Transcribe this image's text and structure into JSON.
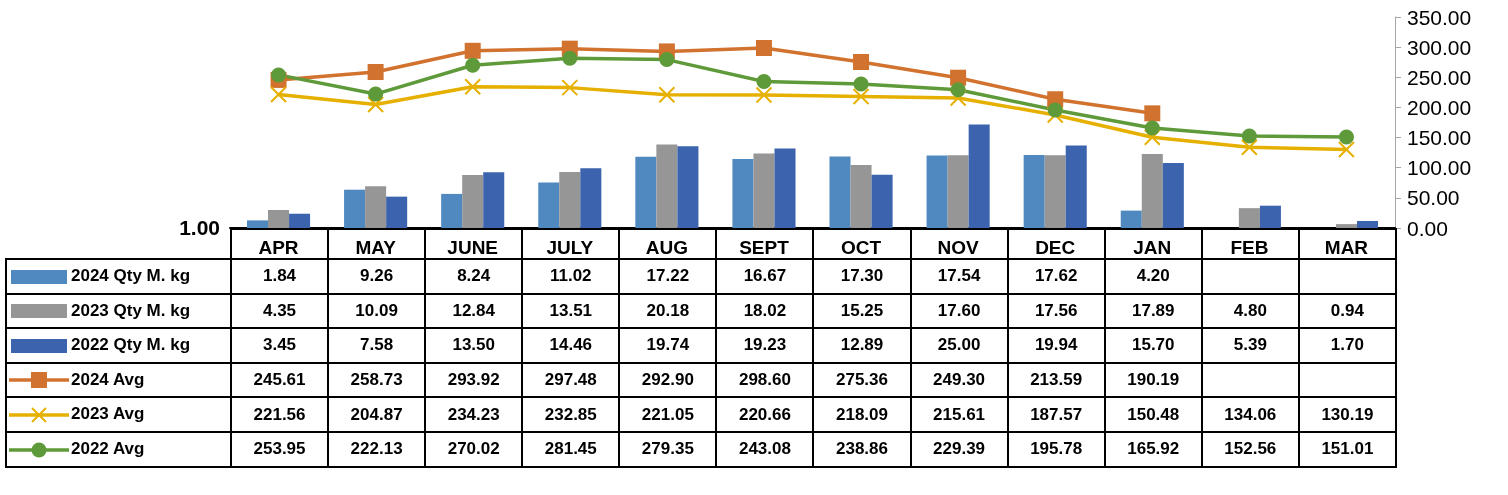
{
  "chart_data": {
    "type": "bar",
    "categories": [
      "APR",
      "MAY",
      "JUNE",
      "JULY",
      "AUG",
      "SEPT",
      "OCT",
      "NOV",
      "DEC",
      "JAN",
      "FEB",
      "MAR"
    ],
    "ylim": [
      0,
      51
    ],
    "annotations": [
      "1.00"
    ],
    "y2lim": [
      0,
      350
    ],
    "y2ticks": [
      {
        "value": 0,
        "label": "0.00"
      },
      {
        "value": 50,
        "label": "50.00"
      },
      {
        "value": 100,
        "label": "100.00"
      },
      {
        "value": 150,
        "label": "150.00"
      },
      {
        "value": 200,
        "label": "200.00"
      },
      {
        "value": 250,
        "label": "250.00"
      },
      {
        "value": 300,
        "label": "300.00"
      },
      {
        "value": 350,
        "label": "350.00"
      }
    ],
    "grid": false,
    "legend": "bottom left",
    "series": [
      {
        "name": "2024 Qty M. kg",
        "color": "#4f89c0",
        "values": [
          1.84,
          9.26,
          8.24,
          11.02,
          17.22,
          16.67,
          17.3,
          17.54,
          17.62,
          4.2,
          null,
          null
        ],
        "value_labels": [
          "1.84",
          "9.26",
          "8.24",
          "11.02",
          "17.22",
          "16.67",
          "17.30",
          "17.54",
          "17.62",
          "4.20",
          null,
          null
        ]
      },
      {
        "name": "2023 Qty M. kg",
        "color": "#969696",
        "values": [
          4.35,
          10.09,
          12.84,
          13.51,
          20.18,
          18.02,
          15.25,
          17.6,
          17.56,
          17.89,
          4.8,
          0.94
        ],
        "value_labels": [
          "4.35",
          "10.09",
          "12.84",
          "13.51",
          "20.18",
          "18.02",
          "15.25",
          "17.60",
          "17.56",
          "17.89",
          "4.80",
          "0.94"
        ]
      },
      {
        "name": "2022 Qty M. kg",
        "color": "#3c64ae",
        "values": [
          3.45,
          7.58,
          13.5,
          14.46,
          19.74,
          19.23,
          12.89,
          25.0,
          19.94,
          15.7,
          5.39,
          1.7
        ],
        "value_labels": [
          "3.45",
          "7.58",
          "13.50",
          "14.46",
          "19.74",
          "19.23",
          "12.89",
          "25.00",
          "19.94",
          "15.70",
          "5.39",
          "1.70"
        ]
      },
      {
        "name": "2024 Avg",
        "type": "line",
        "axis": "y2",
        "marker": "square",
        "color": "#d2722f",
        "values": [
          245.61,
          258.73,
          293.92,
          297.48,
          292.9,
          298.6,
          275.36,
          249.3,
          213.59,
          190.19,
          null,
          null
        ],
        "value_labels": [
          "245.61",
          "258.73",
          "293.92",
          "297.48",
          "292.90",
          "298.60",
          "275.36",
          "249.30",
          "213.59",
          "190.19",
          null,
          null
        ]
      },
      {
        "name": "2023 Avg",
        "type": "line",
        "axis": "y2",
        "marker": "cross",
        "color": "#e6b000",
        "values": [
          221.56,
          204.87,
          234.23,
          232.85,
          221.05,
          220.66,
          218.09,
          215.61,
          187.57,
          150.48,
          134.06,
          130.19
        ],
        "value_labels": [
          "221.56",
          "204.87",
          "234.23",
          "232.85",
          "221.05",
          "220.66",
          "218.09",
          "215.61",
          "187.57",
          "150.48",
          "134.06",
          "130.19"
        ]
      },
      {
        "name": "2022 Avg",
        "type": "line",
        "axis": "y2",
        "marker": "circle",
        "color": "#5f9a3a",
        "values": [
          253.95,
          222.13,
          270.02,
          281.45,
          279.35,
          243.08,
          238.86,
          229.39,
          195.78,
          165.92,
          152.56,
          151.01
        ],
        "value_labels": [
          "253.95",
          "222.13",
          "270.02",
          "281.45",
          "279.35",
          "243.08",
          "238.86",
          "229.39",
          "195.78",
          "165.92",
          "152.56",
          "151.01"
        ]
      }
    ]
  }
}
